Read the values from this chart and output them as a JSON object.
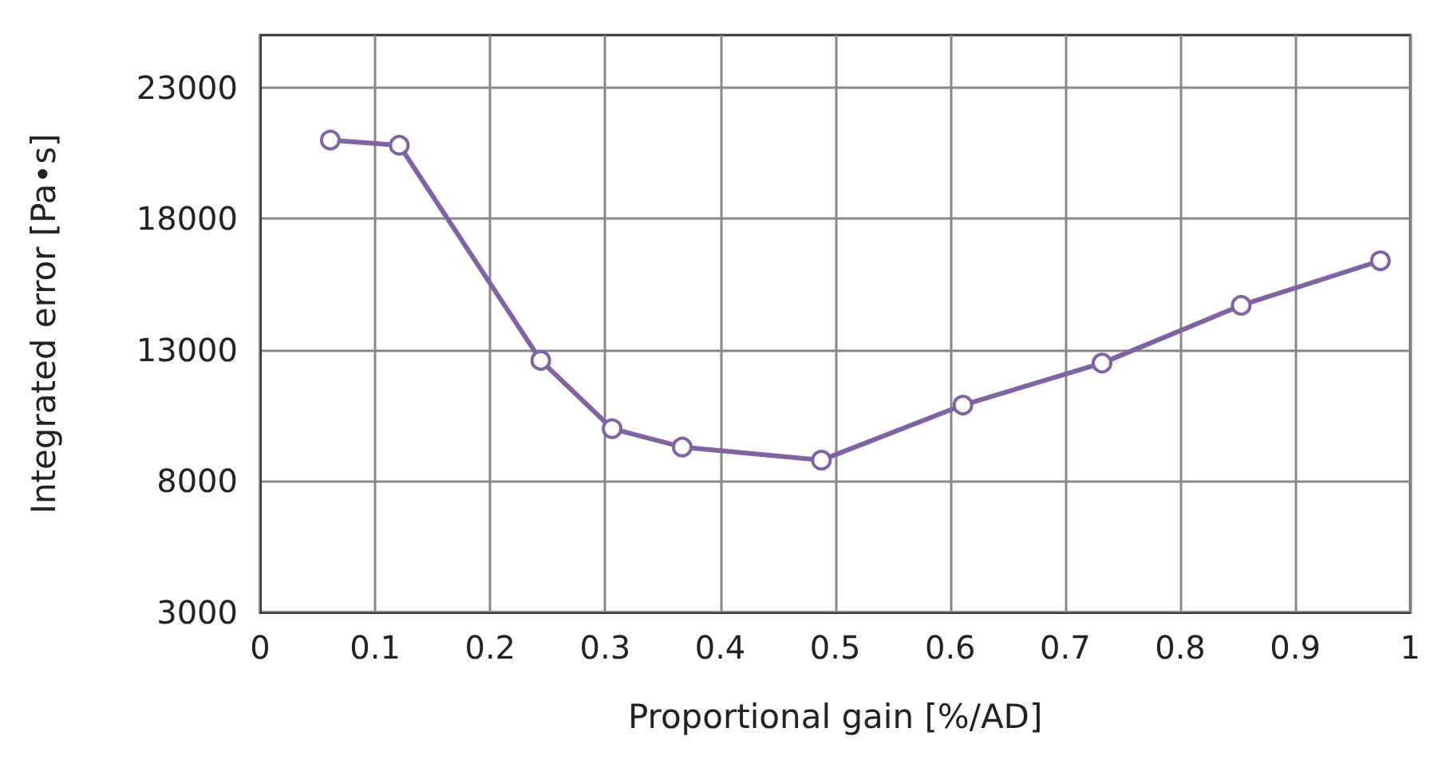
{
  "chart_data": {
    "type": "line",
    "xlabel": "Proportional gain [%/AD]",
    "ylabel": "Integrated error [Pa•s]",
    "x": [
      0.061,
      0.121,
      0.244,
      0.306,
      0.367,
      0.488,
      0.611,
      0.732,
      0.853,
      0.974
    ],
    "series": [
      {
        "color": "#8064a2",
        "values": [
          21000,
          20800,
          12600,
          10000,
          9300,
          8800,
          10900,
          12500,
          14700,
          16400
        ]
      }
    ],
    "xlim": [
      0,
      1
    ],
    "xticks": [
      0,
      0.1,
      0.2,
      0.3,
      0.4,
      0.5,
      0.6,
      0.7,
      0.8,
      0.9,
      1
    ],
    "ylim": [
      3000,
      25000
    ],
    "yticks": [
      3000,
      8000,
      13000,
      18000,
      23000
    ],
    "grid": true,
    "marker": "circle",
    "line_style": "solid"
  }
}
